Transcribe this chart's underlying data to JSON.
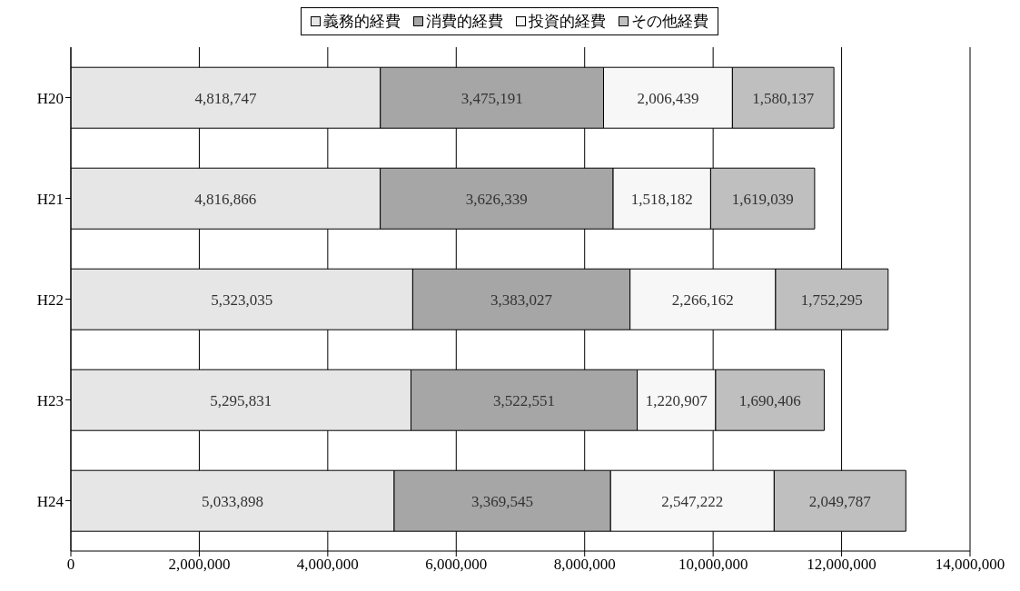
{
  "chart_data": {
    "type": "bar",
    "orientation": "horizontal",
    "stacked": true,
    "categories": [
      "H20",
      "H21",
      "H22",
      "H23",
      "H24"
    ],
    "series": [
      {
        "name": "義務的経費",
        "color": "#e6e6e6",
        "values": [
          4818747,
          4816866,
          5323035,
          5295831,
          5033898
        ],
        "value_labels": [
          "4,818,747",
          "4,816,866",
          "5,323,035",
          "5,295,831",
          "5,033,898"
        ]
      },
      {
        "name": "消費的経費",
        "color": "#a6a6a6",
        "values": [
          3475191,
          3626339,
          3383027,
          3522551,
          3369545
        ],
        "value_labels": [
          "3,475,191",
          "3,626,339",
          "3,383,027",
          "3,522,551",
          "3,369,545"
        ]
      },
      {
        "name": "投資的経費",
        "color": "#f7f7f7",
        "values": [
          2006439,
          1518182,
          2266162,
          1220907,
          2547222
        ],
        "value_labels": [
          "2,006,439",
          "1,518,182",
          "2,266,162",
          "1,220,907",
          "2,547,222"
        ]
      },
      {
        "name": "その他経費",
        "color": "#bfbfbf",
        "values": [
          1580137,
          1619039,
          1752295,
          1690406,
          2049787
        ],
        "value_labels": [
          "1,580,137",
          "1,619,039",
          "1,752,295",
          "1,690,406",
          "2,049,787"
        ]
      }
    ],
    "xlim": [
      0,
      14000000
    ],
    "xticks": [
      0,
      {
        "value": 2000000,
        "label": "2,000,000"
      },
      {
        "value": 4000000,
        "label": "4,000,000"
      },
      {
        "value": 6000000,
        "label": "6,000,000"
      },
      {
        "value": 8000000,
        "label": "8,000,000"
      },
      {
        "value": 10000000,
        "label": "10,000,000"
      },
      {
        "value": 12000000,
        "label": "12,000,000"
      },
      {
        "value": 14000000,
        "label": "14,000,000"
      }
    ],
    "grid": "x",
    "legend": "top"
  }
}
